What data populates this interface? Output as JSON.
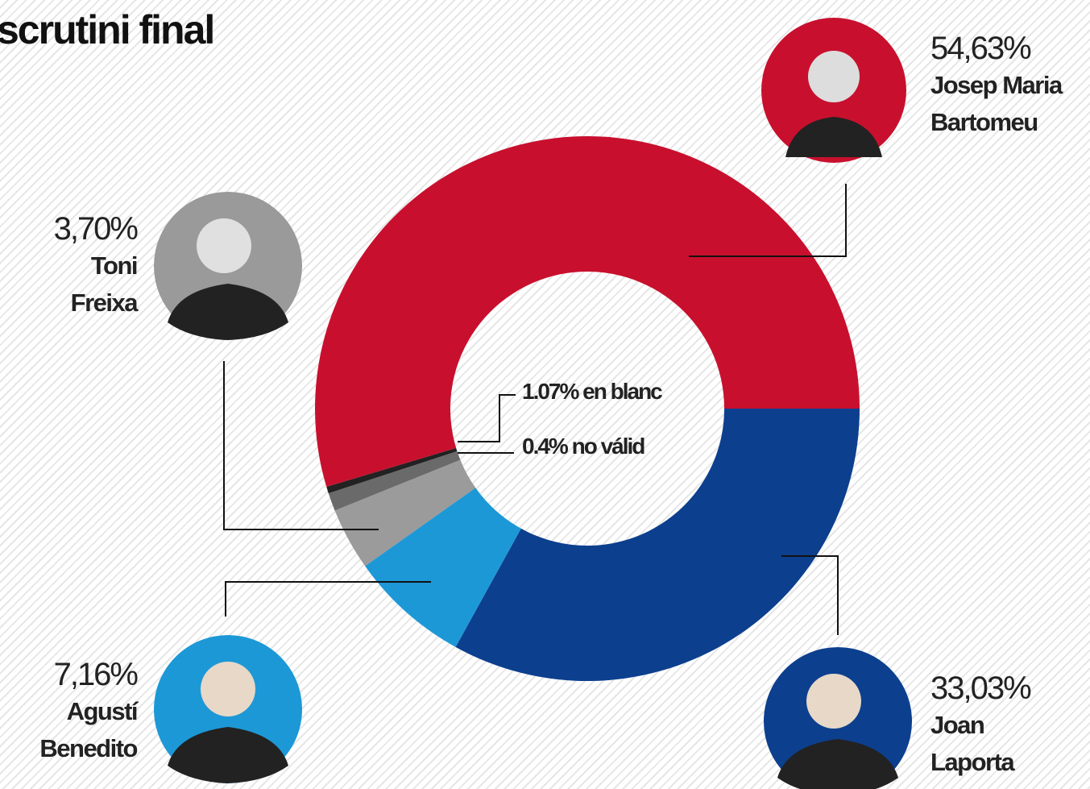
{
  "chart_data": {
    "type": "donut",
    "title": "scrutini final",
    "categories": [
      "Joan Laporta",
      "Agustí Benedito",
      "Toni Freixa",
      null,
      null,
      "Josep Maria Bartomeu"
    ],
    "values": [
      33.03,
      7.16,
      3.7,
      1.07,
      0.4,
      54.63
    ],
    "value_labels": [
      "33,03%",
      "7,16%",
      "3,70%",
      "1.07% en blanc",
      "0.4% no válid",
      "54,63%"
    ],
    "colors": [
      "#0c3f8e",
      "#1d98d6",
      "#9b9b9b",
      "#6a6a6a",
      "#222222",
      "#c8102e"
    ]
  }
}
